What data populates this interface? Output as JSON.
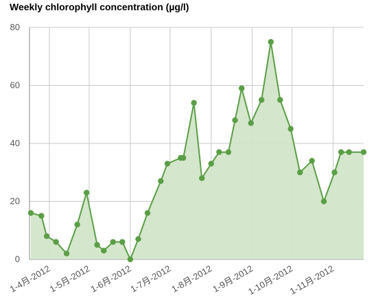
{
  "chart_data": {
    "type": "area",
    "title": "Weekly chlorophyll concentration (µg/l)",
    "xlabel": "",
    "ylabel": "",
    "ylim": [
      0,
      80
    ],
    "yticks": [
      0,
      20,
      40,
      60,
      80
    ],
    "grid": true,
    "legend": "none",
    "x_tick_labels": [
      "1-4月-2012",
      "1-5月-2012",
      "1-6月-2012",
      "1-7月-2012",
      "1-8月-2012",
      "1-9月-2012",
      "1-10月-2012",
      "1-11月-2012"
    ],
    "x_ticks": [
      "2012-04-01",
      "2012-05-01",
      "2012-06-01",
      "2012-07-01",
      "2012-08-01",
      "2012-09-01",
      "2012-10-01",
      "2012-11-01"
    ],
    "xlim": [
      "2012-03-17",
      "2012-11-24"
    ],
    "series": [
      {
        "x": [
          "2012-03-18",
          "2012-03-26",
          "2012-03-30",
          "2012-04-06",
          "2012-04-14",
          "2012-04-22",
          "2012-04-29",
          "2012-05-07",
          "2012-05-12",
          "2012-05-19",
          "2012-05-26",
          "2012-06-01",
          "2012-06-07",
          "2012-06-14",
          "2012-06-24",
          "2012-06-29",
          "2012-07-09",
          "2012-07-11",
          "2012-07-19",
          "2012-07-25",
          "2012-08-01",
          "2012-08-07",
          "2012-08-14",
          "2012-08-19",
          "2012-08-24",
          "2012-08-31",
          "2012-09-08",
          "2012-09-15",
          "2012-09-22",
          "2012-09-30",
          "2012-10-07",
          "2012-10-16",
          "2012-10-25",
          "2012-11-02",
          "2012-11-07",
          "2012-11-13",
          "2012-11-24"
        ],
        "values": [
          16,
          15,
          8,
          6,
          2,
          12,
          23,
          5,
          3,
          6,
          6,
          0,
          7,
          16,
          27,
          33,
          35,
          35,
          54,
          28,
          33,
          37,
          37,
          48,
          59,
          47,
          55,
          75,
          55,
          45,
          30,
          34,
          20,
          30,
          37,
          37,
          37
        ]
      }
    ],
    "colors": {
      "line": "#5a9e46",
      "fill": "#d2e5c8",
      "marker": "#5a9e46",
      "grid": "#c8c8c8"
    }
  }
}
